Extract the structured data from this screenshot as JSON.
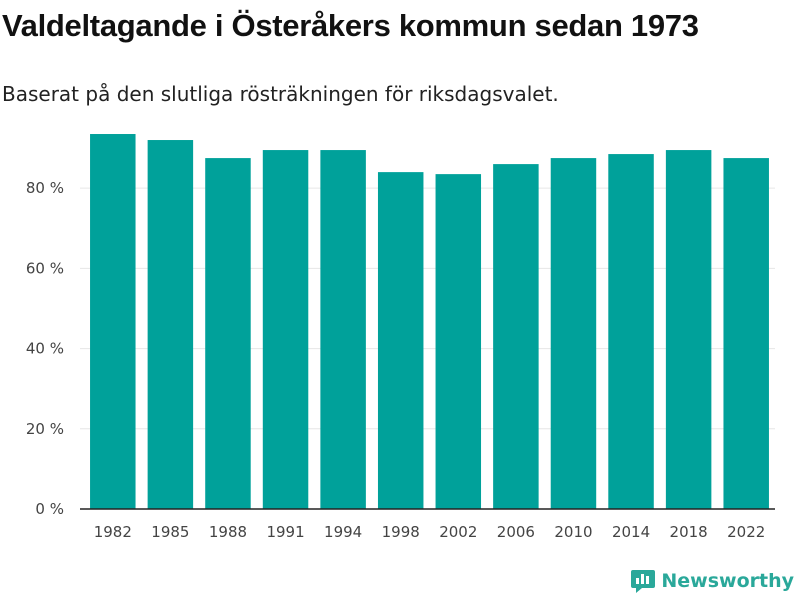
{
  "title": "Valdeltagande i Österåkers kommun sedan 1973",
  "subtitle": "Baserat på den slutliga rösträkningen för riksdagsvalet.",
  "brand": {
    "name": "Newsworthy",
    "icon": "newsworthy-logo-icon"
  },
  "colors": {
    "bar": "#00a19a",
    "grid": "#e6e6e6",
    "axis": "#222222",
    "brand": "#2aa89a"
  },
  "chart_data": {
    "type": "bar",
    "title": "Valdeltagande i Österåkers kommun sedan 1973",
    "subtitle": "Baserat på den slutliga rösträkningen för riksdagsvalet.",
    "xlabel": "",
    "ylabel": "",
    "categories": [
      "1982",
      "1985",
      "1988",
      "1991",
      "1994",
      "1998",
      "2002",
      "2006",
      "2010",
      "2014",
      "2018",
      "2022"
    ],
    "values": [
      93.5,
      92.0,
      87.5,
      89.5,
      89.5,
      84.0,
      83.5,
      86.0,
      87.5,
      88.5,
      89.5,
      87.5
    ],
    "ylim": [
      0,
      95
    ],
    "yticks": [
      0,
      20,
      40,
      60,
      80
    ],
    "ytick_labels": [
      "0 %",
      "20 %",
      "40 %",
      "60 %",
      "80 %"
    ],
    "grid": true,
    "legend": "none"
  }
}
